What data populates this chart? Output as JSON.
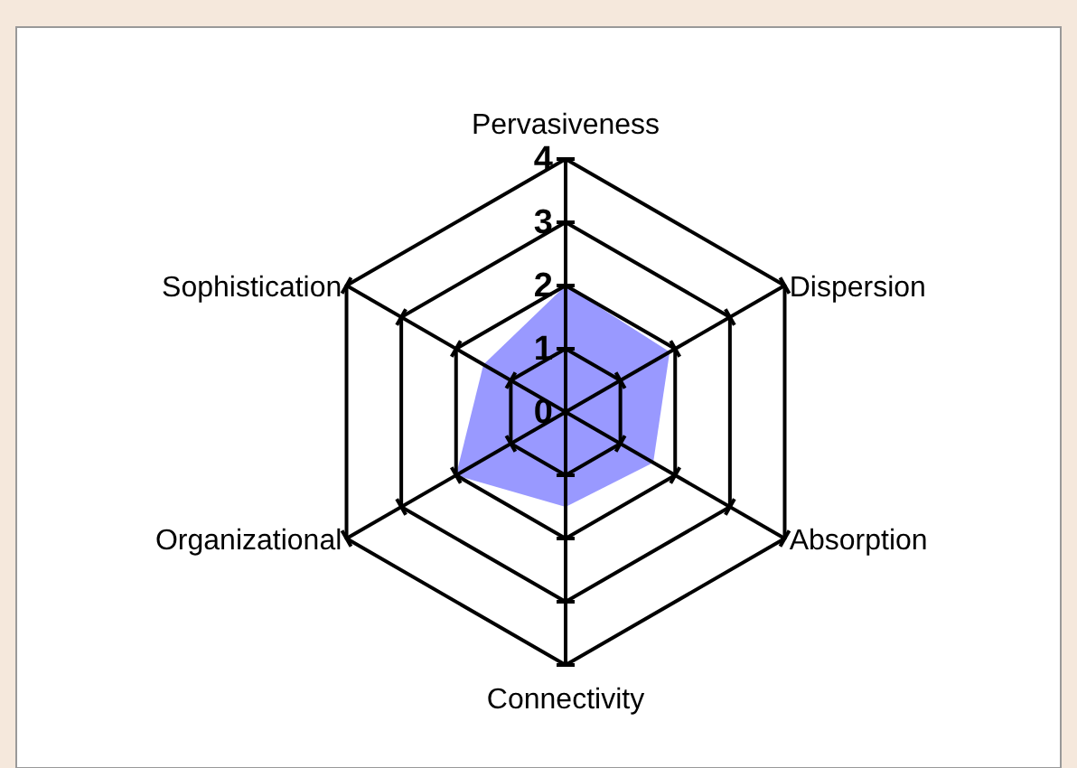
{
  "chart_data": {
    "type": "radar",
    "categories": [
      "Pervasiveness",
      "Dispersion",
      "Absorption",
      "Connectivity",
      "Organizational",
      "Sophistication"
    ],
    "series": [
      {
        "color": "#9999ff",
        "values": [
          2,
          1.9,
          1.6,
          1.5,
          2,
          1.5
        ]
      }
    ],
    "ylim": [
      0,
      4
    ],
    "yticks": [
      0,
      1,
      2,
      3,
      4
    ],
    "grid": true
  }
}
